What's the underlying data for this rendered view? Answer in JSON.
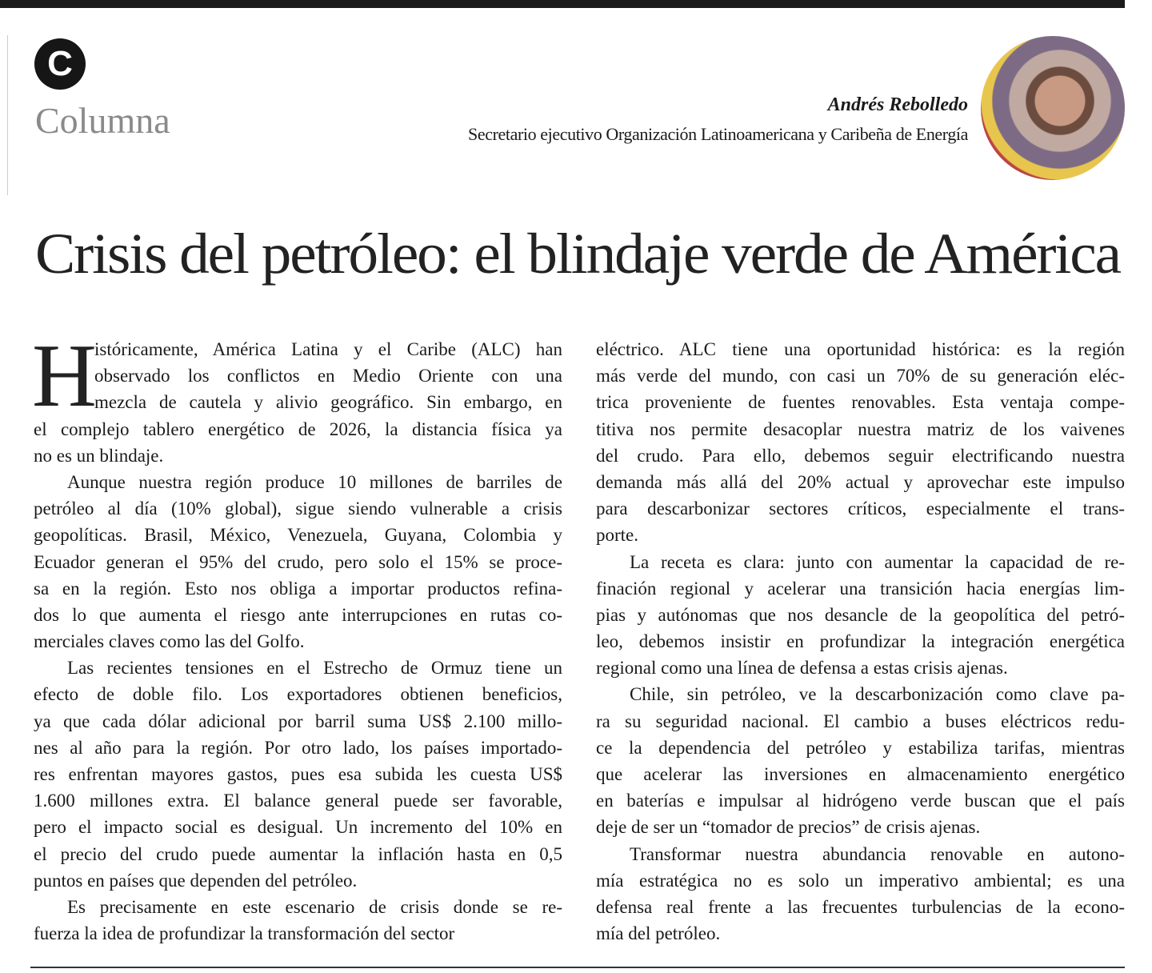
{
  "header": {
    "badge_letter": "C",
    "section": "Columna",
    "author_name": "Andrés Rebolledo",
    "author_role": "Secretario ejecutivo Organización Latinoamericana y Caribeña de Energía",
    "photo_icon": "author-portrait"
  },
  "article": {
    "headline": "Crisis del petróleo: el blindaje verde de América",
    "drop_cap": "H",
    "left_column": [
      [
        "istóricamente, América Latina y el Caribe (ALC) han",
        "observado los conflictos en Medio Oriente con una",
        "mezcla de cautela y alivio geográfico. Sin embargo, en",
        "el complejo tablero energético de 2026, la distancia física ya",
        "no es un blindaje."
      ],
      [
        "Aunque nuestra región produce 10 millones de barriles de",
        "petróleo al día (10% global), sigue siendo vulnerable a crisis",
        "geopolíticas. Brasil, México, Venezuela, Guyana, Colombia y",
        "Ecuador generan el 95% del crudo, pero solo el 15% se proce-",
        "sa en la región. Esto nos obliga a importar productos refina-",
        "dos lo que aumenta el riesgo ante interrupciones en rutas co-",
        "merciales claves como las del Golfo."
      ],
      [
        "Las recientes tensiones en el Estrecho de Ormuz tiene un",
        "efecto de doble filo. Los exportadores obtienen beneficios,",
        "ya que cada dólar adicional por barril suma US$ 2.100 millo-",
        "nes al año para la región. Por otro lado, los países importado-",
        "res enfrentan mayores gastos, pues esa subida les cuesta US$",
        "1.600 millones extra. El balance general puede ser favorable,",
        "pero el impacto social es desigual. Un incremento del 10% en",
        "el precio del crudo puede aumentar la inflación hasta en 0,5",
        "puntos en países que dependen del petróleo."
      ],
      [
        "Es precisamente en este escenario de crisis donde se re-",
        "fuerza la idea de profundizar la transformación del sector"
      ]
    ],
    "right_column": [
      [
        "eléctrico. ALC tiene una oportunidad histórica: es la región",
        "más verde del mundo, con casi un 70% de su generación eléc-",
        "trica proveniente de fuentes renovables. Esta ventaja compe-",
        "titiva nos permite desacoplar nuestra matriz de los vaivenes",
        "del crudo. Para ello, debemos seguir electrificando nuestra",
        "demanda más allá del 20% actual y aprovechar este impulso",
        "para descarbonizar sectores críticos, especialmente el trans-",
        "porte."
      ],
      [
        "La receta es clara: junto con aumentar la capacidad de re-",
        "finación regional y acelerar una transición hacia energías lim-",
        "pias y autónomas que nos desancle de la geopolítica del petró-",
        "leo, debemos insistir en profundizar la integración energética",
        "regional como una línea de defensa a estas crisis ajenas."
      ],
      [
        "Chile, sin petróleo, ve la descarbonización como clave pa-",
        "ra su seguridad nacional. El cambio a buses eléctricos redu-",
        "ce la dependencia del petróleo y estabiliza tarifas, mientras",
        "que acelerar las inversiones en almacenamiento energético",
        "en baterías e impulsar al hidrógeno verde buscan que el país",
        "deje de ser un “tomador de precios” de crisis ajenas."
      ],
      [
        "Transformar nuestra abundancia renovable en autono-",
        "mía estratégica no es solo un imperativo ambiental; es una",
        "defensa real frente a las frecuentes turbulencias de la econo-",
        "mía del petróleo."
      ]
    ]
  }
}
